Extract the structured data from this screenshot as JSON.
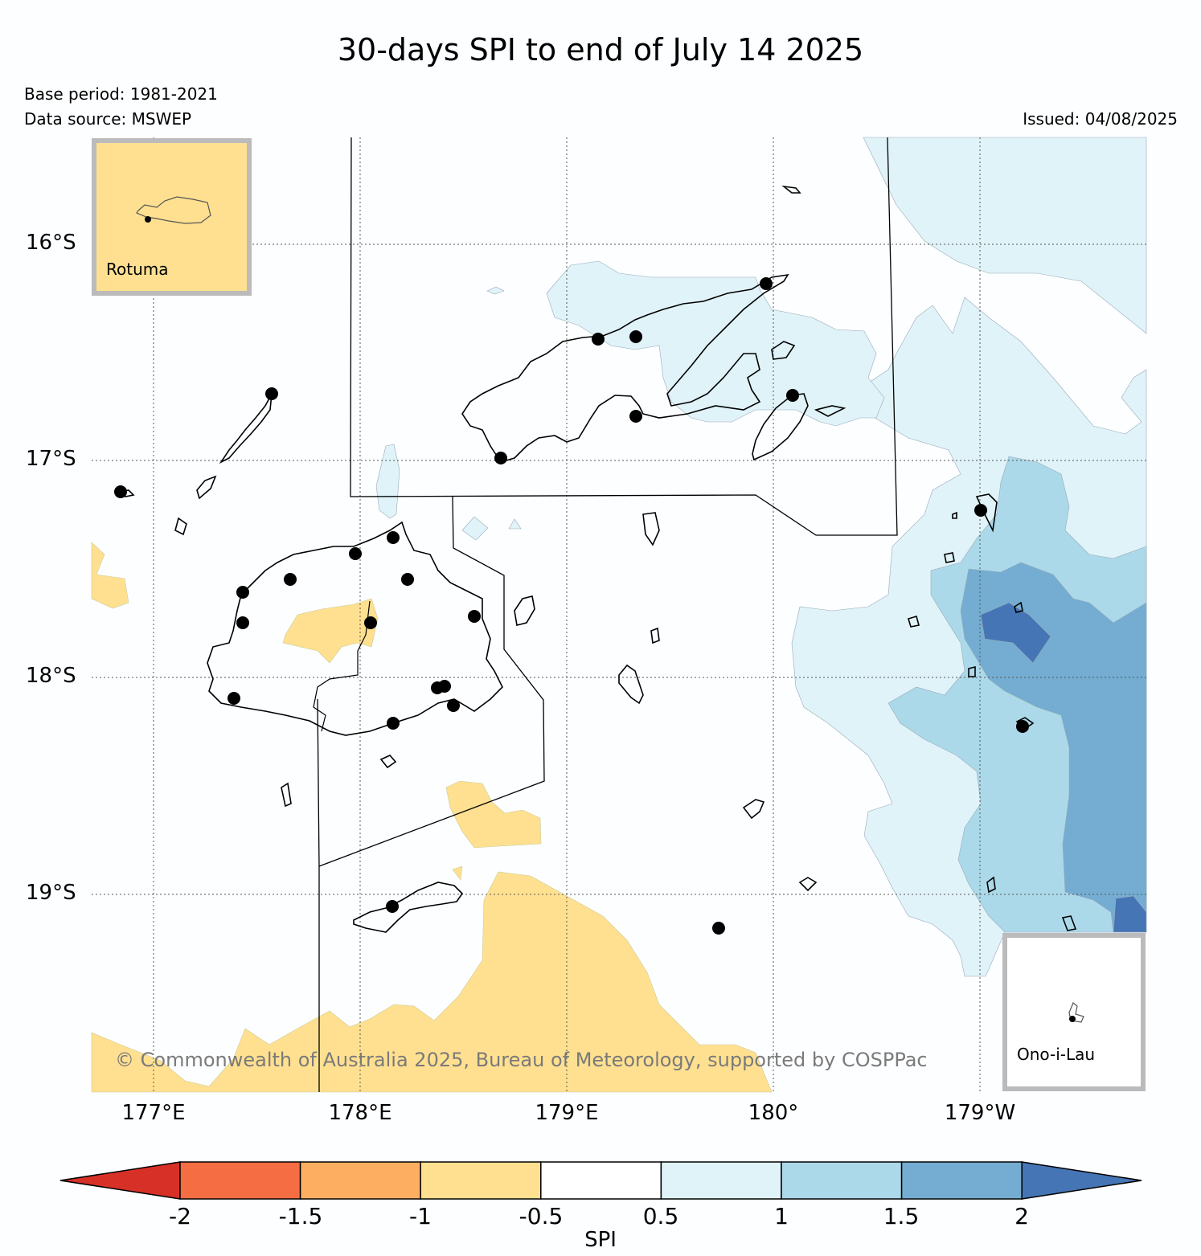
{
  "title": "30-days SPI to end of July 14 2025",
  "base_period": "Base period: 1981-2021",
  "data_source": "Data source: MSWEP",
  "issued": "Issued: 04/08/2025",
  "copyright": "© Commonwealth of Australia 2025, Bureau of Meteorology, supported by COSPPac",
  "lat_labels": [
    "16°S",
    "17°S",
    "18°S",
    "19°S"
  ],
  "lon_labels": [
    "177°E",
    "178°E",
    "179°E",
    "180°",
    "179°W"
  ],
  "insets": {
    "top_left": "Rotuma",
    "bottom_right": "Ono-i-Lau"
  },
  "colorbar": {
    "label": "SPI",
    "ticks": [
      "-2",
      "-1.5",
      "-1",
      "-0.5",
      "0.5",
      "1",
      "1.5",
      "2"
    ],
    "colors": [
      "#d73027",
      "#f46d43",
      "#fdae61",
      "#fee090",
      "#ffffff",
      "#e0f3f8",
      "#abd9e9",
      "#74add1",
      "#4575b4"
    ]
  },
  "colors": {
    "dry_fill": "#fee090",
    "wet_light": "#e0f3f8",
    "wet_mid": "#abd9e9",
    "wet_strong": "#74add1",
    "wet_max": "#4575b4"
  }
}
